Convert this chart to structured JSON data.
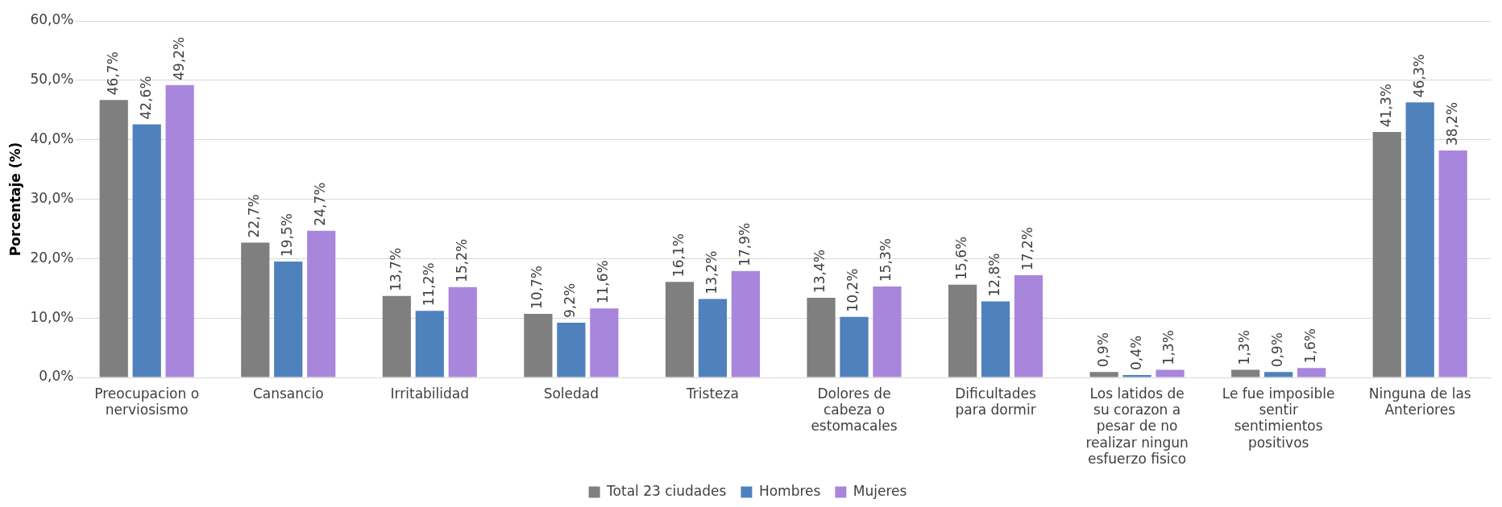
{
  "chart_data": {
    "type": "bar",
    "ylabel": "Porcentaje (%)",
    "categories": [
      "Preocupacion o nerviosismo",
      "Cansancio",
      "Irritabilidad",
      "Soledad",
      "Tristeza",
      "Dolores de cabeza o estomacales",
      "Dificultades para dormir",
      "Los latidos de su corazon a pesar de no realizar ningun esfuerzo fisico",
      "Le fue imposible sentir sentimientos positivos",
      "Ninguna de las Anteriores"
    ],
    "series": [
      {
        "name": "Total 23 ciudades",
        "color": "#7f7f7f",
        "values": [
          46.7,
          22.7,
          13.7,
          10.7,
          16.1,
          13.4,
          15.6,
          0.9,
          1.3,
          41.3
        ],
        "value_labels": [
          "46,7%",
          "22,7%",
          "13,7%",
          "10,7%",
          "16,1%",
          "13,4%",
          "15,6%",
          "0,9%",
          "1,3%",
          "41,3%"
        ]
      },
      {
        "name": "Hombres",
        "color": "#4f81bd",
        "values": [
          42.6,
          19.5,
          11.2,
          9.2,
          13.2,
          10.2,
          12.8,
          0.4,
          0.9,
          46.3
        ],
        "value_labels": [
          "42,6%",
          "19,5%",
          "11,2%",
          "9,2%",
          "13,2%",
          "10,2%",
          "12,8%",
          "0,4%",
          "0,9%",
          "46,3%"
        ]
      },
      {
        "name": "Mujeres",
        "color": "#a886dc",
        "values": [
          49.2,
          24.7,
          15.2,
          11.6,
          17.9,
          15.3,
          17.2,
          1.3,
          1.6,
          38.2
        ],
        "value_labels": [
          "49,2%",
          "24,7%",
          "15,2%",
          "11,6%",
          "17,9%",
          "15,3%",
          "17,2%",
          "1,3%",
          "1,6%",
          "38,2%"
        ]
      }
    ],
    "ylim": [
      0,
      60
    ],
    "yticks": [
      {
        "value": 0,
        "label": "0,0%"
      },
      {
        "value": 10,
        "label": "10,0%"
      },
      {
        "value": 20,
        "label": "20,0%"
      },
      {
        "value": 30,
        "label": "30,0%"
      },
      {
        "value": 40,
        "label": "40,0%"
      },
      {
        "value": 50,
        "label": "50,0%"
      },
      {
        "value": 60,
        "label": "60,0%"
      }
    ],
    "grid": "y",
    "legend": "bottom"
  }
}
